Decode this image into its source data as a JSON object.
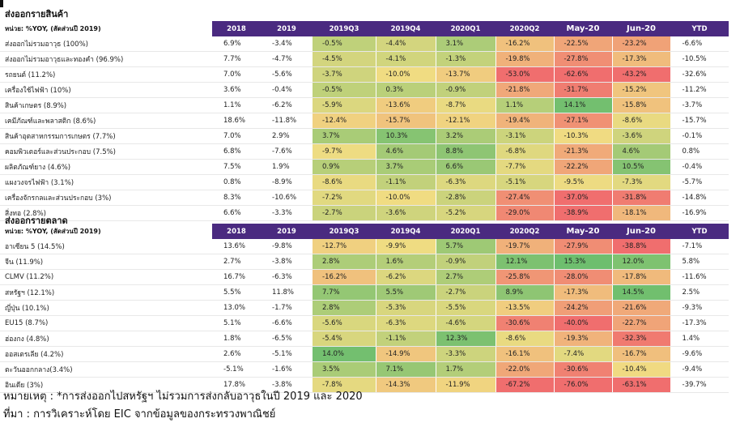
{
  "table1": {
    "title": "ส่งออกรายสินค้า",
    "unit_label": "หน่วย: %YOY, (สัดส่วนปี 2019)",
    "columns": [
      "2018",
      "2019",
      "2019Q3",
      "2019Q4",
      "2020Q1",
      "2020Q2",
      "May-20",
      "Jun-20",
      "YTD"
    ],
    "rows": [
      {
        "label": "ส่งออกไม่รวมอาวุธ (100%)",
        "values": [
          "6.9%",
          "-3.4%",
          "-0.5%",
          "-4.4%",
          "3.1%",
          "-16.2%",
          "-22.5%",
          "-23.2%",
          "-6.6%"
        ]
      },
      {
        "label": "ส่งออกไม่รวมอาวุธและทองคำ (96.9%)",
        "values": [
          "7.7%",
          "-4.7%",
          "-4.5%",
          "-4.1%",
          "-1.3%",
          "-19.8%",
          "-27.8%",
          "-17.3%",
          "-10.5%"
        ]
      },
      {
        "label": "รถยนต์ (11.2%)",
        "values": [
          "7.0%",
          "-5.6%",
          "-3.7%",
          "-10.0%",
          "-13.7%",
          "-53.0%",
          "-62.6%",
          "-43.2%",
          "-32.6%"
        ]
      },
      {
        "label": "เครื่องใช้ไฟฟ้า (10%)",
        "values": [
          "3.6%",
          "-0.4%",
          "-0.5%",
          "0.3%",
          "-0.9%",
          "-21.8%",
          "-31.7%",
          "-15.2%",
          "-11.2%"
        ]
      },
      {
        "label": "สินค้าเกษตร (8.9%)",
        "values": [
          "1.1%",
          "-6.2%",
          "-5.9%",
          "-13.6%",
          "-8.7%",
          "1.1%",
          "14.1%",
          "-15.8%",
          "-3.7%"
        ]
      },
      {
        "label": "เคมีภัณฑ์และพลาสติก (8.6%)",
        "values": [
          "18.6%",
          "-11.8%",
          "-12.4%",
          "-15.7%",
          "-12.1%",
          "-19.4%",
          "-27.1%",
          "-8.6%",
          "-15.7%"
        ]
      },
      {
        "label": "สินค้าอุตสาหกรรมการเกษตร (7.7%)",
        "values": [
          "7.0%",
          "2.9%",
          "3.7%",
          "10.3%",
          "3.2%",
          "-3.1%",
          "-10.3%",
          "-3.6%",
          "-0.1%"
        ]
      },
      {
        "label": "คอมพิวเตอร์และส่วนประกอบ (7.5%)",
        "values": [
          "6.8%",
          "-7.6%",
          "-9.7%",
          "4.6%",
          "8.8%",
          "-6.8%",
          "-21.3%",
          "4.6%",
          "0.8%"
        ]
      },
      {
        "label": "ผลิตภัณฑ์ยาง (4.6%)",
        "values": [
          "7.5%",
          "1.9%",
          "0.9%",
          "3.7%",
          "6.6%",
          "-7.7%",
          "-22.2%",
          "10.5%",
          "-0.4%"
        ]
      },
      {
        "label": "แผงวงจรไฟฟ้า (3.1%)",
        "values": [
          "0.8%",
          "-8.9%",
          "-8.6%",
          "-1.1%",
          "-6.3%",
          "-5.1%",
          "-9.5%",
          "-7.3%",
          "-5.7%"
        ]
      },
      {
        "label": "เครื่องจักรกลและส่วนประกอบ (3%)",
        "values": [
          "8.3%",
          "-10.6%",
          "-7.2%",
          "-10.0%",
          "-2.8%",
          "-27.4%",
          "-37.0%",
          "-31.8%",
          "-14.8%"
        ]
      },
      {
        "label": "สิ่งทอ (2.8%)",
        "values": [
          "6.6%",
          "-3.3%",
          "-2.7%",
          "-3.6%",
          "-5.2%",
          "-29.0%",
          "-38.9%",
          "-18.1%",
          "-16.9%"
        ]
      }
    ]
  },
  "table2": {
    "title": "ส่งออกรายตลาด",
    "unit_label": "หน่วย: %YOY, (สัดส่วนปี 2019)",
    "columns": [
      "2018",
      "2019",
      "2019Q3",
      "2019Q4",
      "2020Q1",
      "2020Q2",
      "May-20",
      "Jun-20",
      "YTD"
    ],
    "rows": [
      {
        "label": "อาเซียน 5 (14.5%)",
        "values": [
          "13.6%",
          "-9.8%",
          "-12.7%",
          "-9.9%",
          "5.7%",
          "-19.7%",
          "-27.9%",
          "-38.8%",
          "-7.1%"
        ]
      },
      {
        "label": "จีน (11.9%)",
        "values": [
          "2.7%",
          "-3.8%",
          "2.8%",
          "1.6%",
          "-0.9%",
          "12.1%",
          "15.3%",
          "12.0%",
          "5.8%"
        ]
      },
      {
        "label": "CLMV (11.2%)",
        "values": [
          "16.7%",
          "-6.3%",
          "-16.2%",
          "-6.2%",
          "2.7%",
          "-25.8%",
          "-28.0%",
          "-17.8%",
          "-11.6%"
        ]
      },
      {
        "label": "สหรัฐฯ (12.1%)",
        "values": [
          "5.5%",
          "11.8%",
          "7.7%",
          "5.5%",
          "-2.7%",
          "8.9%",
          "-17.3%",
          "14.5%",
          "2.5%"
        ]
      },
      {
        "label": "ญี่ปุ่น (10.1%)",
        "values": [
          "13.0%",
          "-1.7%",
          "2.8%",
          "-5.3%",
          "-5.5%",
          "-13.5%",
          "-24.2%",
          "-21.6%",
          "-9.3%"
        ]
      },
      {
        "label": "EU15 (8.7%)",
        "values": [
          "5.1%",
          "-6.6%",
          "-5.6%",
          "-6.3%",
          "-4.6%",
          "-30.6%",
          "-40.0%",
          "-22.7%",
          "-17.3%"
        ]
      },
      {
        "label": "ฮ่องกง (4.8%)",
        "values": [
          "1.8%",
          "-6.5%",
          "-5.4%",
          "-1.1%",
          "12.3%",
          "-8.6%",
          "-19.3%",
          "-32.3%",
          "1.4%"
        ]
      },
      {
        "label": "ออสเตรเลีย (4.2%)",
        "values": [
          "2.6%",
          "-5.1%",
          "14.0%",
          "-14.9%",
          "-3.3%",
          "-16.1%",
          "-7.4%",
          "-16.7%",
          "-9.6%"
        ]
      },
      {
        "label": "ตะวันออกกลาง(3.4%)",
        "values": [
          "-5.1%",
          "-1.6%",
          "3.5%",
          "7.1%",
          "1.7%",
          "-22.0%",
          "-30.6%",
          "-10.4%",
          "-9.4%"
        ]
      },
      {
        "label": "อินเดีย (3%)",
        "values": [
          "17.8%",
          "-3.8%",
          "-7.8%",
          "-14.3%",
          "-11.9%",
          "-67.2%",
          "-76.0%",
          "-63.1%",
          "-39.7%"
        ]
      }
    ]
  },
  "footnote": "หมายเหตุ : *การส่งออกไปสหรัฐฯ ไม่รวมการส่งกลับอาวุธในปี 2019 และ 2020",
  "source": "ที่มา : การวิเคราะห์โดย EIC จากข้อมูลของกระทรวงพาณิชย์"
}
